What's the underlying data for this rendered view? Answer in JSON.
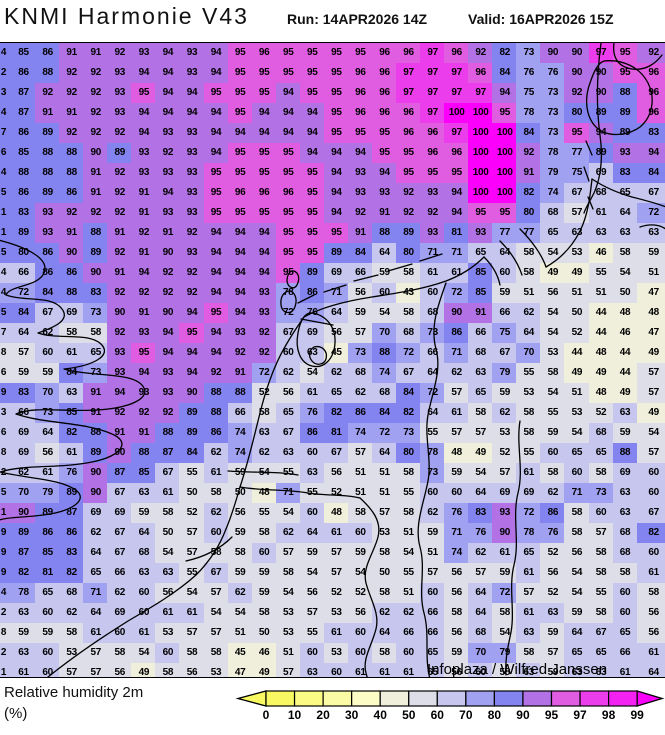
{
  "header": {
    "title": "KNMI Harmonie V43",
    "run_label": "Run: 14APR2026 14Z",
    "valid_label": "Valid: 16APR2026 15Z"
  },
  "map": {
    "attribution": "Infoplaza / Wilfred Janssen"
  },
  "legend": {
    "title": "Relative humidity 2m",
    "unit": "(%)",
    "ticks": [
      "0",
      "10",
      "20",
      "30",
      "40",
      "50",
      "60",
      "70",
      "80",
      "90",
      "95",
      "97",
      "98",
      "99"
    ],
    "segment_colors": [
      "#F8F862",
      "#FAFA84",
      "#FBFBA6",
      "#FCFCC6",
      "#EFEFDC",
      "#DEDEE9",
      "#C6C6EF",
      "#A1A1F2",
      "#8484F1",
      "#B272E6",
      "#E05CE0",
      "#EC3DEC",
      "#F322F3"
    ],
    "left_arrow_color": "#F8F862",
    "right_arrow_color": "#FB00FB"
  },
  "chart_data": {
    "type": "heatmap",
    "title": "Relative humidity 2m (%)",
    "value_unit": "%",
    "color_scale": [
      {
        "gte": 99.5,
        "color": "#FB00FB"
      },
      {
        "gte": 98,
        "color": "#F322F3"
      },
      {
        "gte": 97,
        "color": "#EC3DEC"
      },
      {
        "gte": 95,
        "color": "#E05CE0"
      },
      {
        "gte": 90,
        "color": "#B272E6"
      },
      {
        "gte": 80,
        "color": "#8484F1"
      },
      {
        "gte": 70,
        "color": "#A1A1F2"
      },
      {
        "gte": 60,
        "color": "#C6C6EF"
      },
      {
        "gte": 50,
        "color": "#DEDEE9"
      },
      {
        "gte": 40,
        "color": "#EFEFDC"
      },
      {
        "gte": 0,
        "color": "#FAFAC0"
      }
    ],
    "grid_rows": [
      "4 85 86 91 91 92 93 94 93 94 95 96 95 95 95 95 96 96 97 96 92 82 73 90 90 97 95 92",
      "2 86 88 92 92 93 94 94 93 94 95 95 95 95 95 96 96 97 97 97 96 84 76 76 90 90 95 96",
      "3 87 92 92 92 93 95 94 94 95 95 95 94 95 95 96 96 97 97 97 97 94 75 73 92 90 88 96",
      "4 87 91 91 92 93 94 94 94 94 95 94 94 94 95 96 96 96 97 100 100 95 78 73 80 89 89 96",
      "7 86 89 92 92 92 94 93 93 94 94 94 94 94 95 95 95 96 96 97 100 100 84 73 95 94 89 83",
      "6 85 88 88 90 89 93 92 93 94 95 95 95 94 94 94 95 95 96 96 100 100 92 78 77 89 93 94",
      "4 88 88 88 91 92 93 93 93 95 95 95 95 95 94 93 94 95 95 95 100 100 91 79 75 69 83 84",
      "5 86 89 86 91 92 91 94 93 95 96 96 96 95 94 93 93 92 93 94 100 100 82 74 67 68 65 67",
      "1 83 93 92 92 92 91 93 93 95 95 95 95 95 94 92 91 92 92 94 95 95 80 68 57 61 64 72",
      "1 89 93 91 88 91 92 91 92 94 94 94 95 95 95 91 88 89 93 81 93 77 77 65 63 63 63 63",
      "5 80 86 90 89 92 91 90 93 94 94 94 95 95 89 84 64 80 71 71 65 64 58 54 53 46 58 59",
      "4 66 86 86 90 91 94 92 92 94 94 94 95 89 69 66 59 58 61 61 85 60 58 49 49 55 54 51",
      "4 72 84 88 83 92 92 92 92 94 94 93 78 86 71 56 60 43 60 72 85 59 51 56 51 51 50 47",
      "5 84 67 69 73 90 91 90 94 95 94 93 72 76 64 59 54 58 68 90 91 66 62 54 50 44 48 48",
      "7 64 62 58 58 92 93 94 95 94 93 92 67 69 56 57 70 68 73 86 66 75 64 54 52 44 46 47",
      "8 57 60 61 65 93 95 94 94 94 92 92 60 63 45 73 88 72 66 71 68 67 70 53 44 48 44 49",
      "6 59 59 84 73 93 94 93 94 92 91 72 62 54 62 68 74 67 64 62 63 79 55 58 49 49 44 57",
      "9 83 70 63 91 94 93 93 90 88 88 52 56 61 65 62 68 84 72 57 65 59 53 54 51 48 49 57",
      "3 66 73 85 91 92 92 92 89 88 66 58 65 76 82 86 84 82 64 61 58 62 58 55 53 52 63 49",
      "6 69 64 82 88 91 91 88 89 86 74 63 67 86 81 74 72 73 55 57 57 53 58 59 54 68 59 54",
      "8 69 56 61 89 90 88 87 84 62 74 62 63 60 67 57 64 80 78 48 49 52 55 60 65 65 88 57",
      "2 62 61 76 90 87 85 67 55 61 59 54 55 63 56 51 51 58 73 59 54 57 61 58 60 58 69 60",
      "5 70 79 89 90 67 63 61 50 58 50 48 71 55 52 51 51 55 60 60 64 69 69 62 71 73 63 60",
      "1 90 89 87 69 69 59 58 52 62 56 55 54 60 48 58 57 58 62 76 83 93 72 86 58 60 63 67",
      "9 89 86 86 62 67 64 50 57 60 59 58 62 64 61 60 53 51 59 71 76 90 78 76 58 57 68 82",
      "9 87 85 83 64 67 68 54 57 58 58 60 57 59 57 59 58 54 51 74 62 61 65 52 56 58 68 60",
      "9 82 81 82 65 66 63 63 55 67 59 59 58 54 57 54 50 55 57 56 57 59 61 56 54 58 58 61",
      "4 78 65 68 71 62 60 56 54 57 62 59 54 56 52 52 58 51 60 56 64 72 57 52 54 55 60 58",
      "2 63 60 62 64 69 60 61 61 54 54 58 53 57 53 56 62 62 66 58 64 58 61 63 59 58 60 56",
      "8 59 59 58 61 60 61 53 57 57 51 50 53 55 61 60 64 66 66 56 68 54 63 59 64 67 65 56",
      "2 63 60 53 57 58 54 60 58 58 45 46 51 60 53 60 58 60 65 59 70 79 58 57 65 65 66 61",
      "1 61 60 57 57 56 49 58 56 53 47 49 57 63 60 61 61 61 65 56 60 58 63 59 63 63 61 64"
    ]
  }
}
